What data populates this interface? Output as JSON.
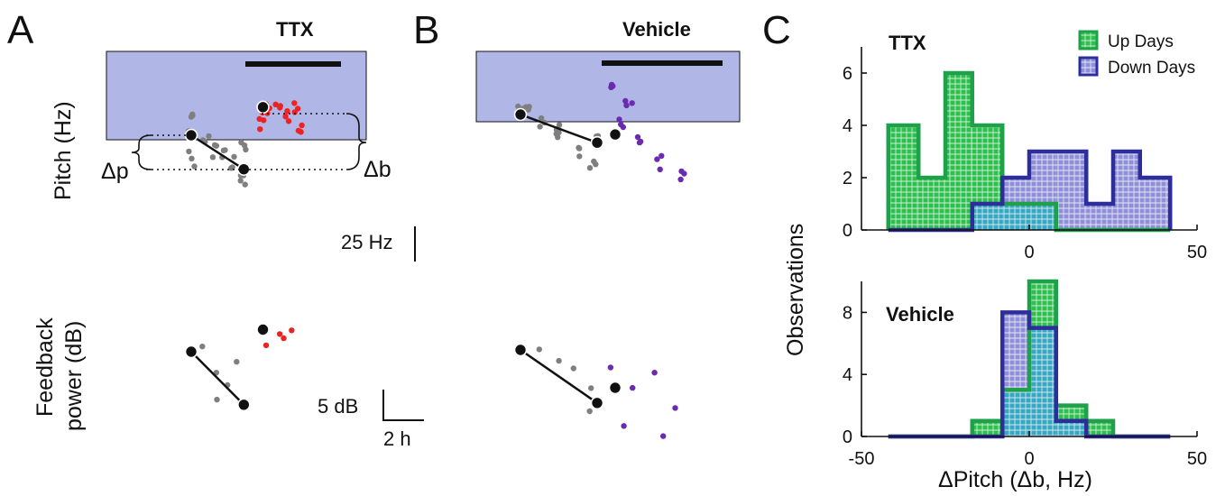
{
  "colors": {
    "pre": "#7f7f7f",
    "ttx": "#ee2222",
    "vehicle": "#6a2bb0",
    "shade": "#b0b6e6",
    "up_fill": "#2fbf4f",
    "up_edge": "#1fa04a",
    "down_fill": "#8f90d8",
    "down_edge": "#2e2e9a",
    "overlap": "#38a7c2"
  },
  "panels": {
    "A": {
      "letter": "A",
      "condition": "TTX",
      "pitch_ylabel": "Pitch (Hz)",
      "power_ylabel_line1": "Feedback",
      "power_ylabel_line2": "power (dB)",
      "delta_p": "Δp",
      "delta_b": "Δb",
      "pitch_scalebar": "25 Hz",
      "power_scalebar": "5 dB",
      "time_scalebar": "2 h"
    },
    "B": {
      "letter": "B",
      "condition": "Vehicle"
    },
    "C": {
      "letter": "C",
      "ylabel": "Observations",
      "xlabel": "ΔPitch (Δb, Hz)"
    }
  },
  "chart_data": [
    {
      "type": "bar",
      "subtype": "step-histogram",
      "panel": "C-top",
      "title": "TTX",
      "x_edges": [
        -42,
        -33,
        -25,
        -17,
        -8,
        0,
        8,
        17,
        25,
        33,
        42
      ],
      "xlim": [
        -50,
        50
      ],
      "ylim": [
        0,
        7
      ],
      "yticks": [
        0,
        2,
        4,
        6
      ],
      "xticks": [
        0,
        50
      ],
      "legend": {
        "position": "top-right",
        "entries": [
          "Up Days",
          "Down Days"
        ]
      },
      "series": [
        {
          "name": "Up Days",
          "values": [
            4,
            2,
            6,
            4,
            1,
            1,
            0,
            0,
            0,
            0
          ]
        },
        {
          "name": "Down Days",
          "values": [
            0,
            0,
            0,
            1,
            2,
            3,
            3,
            1,
            3,
            2
          ]
        }
      ]
    },
    {
      "type": "bar",
      "subtype": "step-histogram",
      "panel": "C-bottom",
      "title": "Vehicle",
      "x_edges": [
        -42,
        -33,
        -25,
        -17,
        -8,
        0,
        8,
        17,
        25,
        33,
        42
      ],
      "xlim": [
        -50,
        50
      ],
      "ylim": [
        0,
        10
      ],
      "yticks": [
        0,
        4,
        8
      ],
      "xticks": [
        -50,
        0,
        50
      ],
      "series": [
        {
          "name": "Up Days",
          "values": [
            0,
            0,
            0,
            1,
            3,
            10,
            2,
            1,
            0,
            0
          ]
        },
        {
          "name": "Down Days",
          "values": [
            0,
            0,
            0,
            0,
            8,
            7,
            1,
            0,
            0,
            0
          ]
        }
      ]
    },
    {
      "type": "scatter",
      "panel": "A-pitch",
      "title": "TTX",
      "units": "Hz",
      "series": [
        {
          "group": "pre",
          "points": [
            [
              0.0,
              0.0
            ],
            [
              1.1,
              -29.0
            ],
            [
              0.0,
              12.0
            ],
            [
              0.0,
              -20.0
            ],
            [
              0.3,
              -5.0
            ],
            [
              0.5,
              -12.0
            ],
            [
              0.7,
              -15.0
            ],
            [
              0.9,
              -22.0
            ],
            [
              1.1,
              -10.0
            ],
            [
              1.1,
              -40.0
            ]
          ]
        },
        {
          "group": "post",
          "points": [
            [
              1.5,
              24.0
            ],
            [
              1.6,
              18.0
            ],
            [
              1.8,
              30.0
            ],
            [
              2.0,
              14.0
            ],
            [
              2.2,
              26.0
            ],
            [
              1.5,
              12.0
            ],
            [
              2.3,
              8.0
            ]
          ]
        }
      ],
      "means": [
        [
          0.0,
          0.0
        ],
        [
          1.1,
          -29.0
        ],
        [
          1.5,
          24.0
        ]
      ]
    },
    {
      "type": "scatter",
      "panel": "A-power",
      "title": "TTX",
      "units": "dB",
      "series": [
        {
          "group": "pre",
          "points": [
            [
              0.0,
              0.0
            ],
            [
              1.1,
              -8.4
            ],
            [
              0.2,
              1.0
            ],
            [
              0.5,
              -3.0
            ],
            [
              0.8,
              -5.0
            ],
            [
              1.0,
              -2.0
            ],
            [
              0.6,
              -8.0
            ]
          ]
        },
        {
          "group": "post",
          "points": [
            [
              1.5,
              3.5
            ],
            [
              1.8,
              2.5
            ],
            [
              2.1,
              3.0
            ],
            [
              1.6,
              1.0
            ],
            [
              2.0,
              2.0
            ]
          ]
        }
      ],
      "means": [
        [
          0.0,
          0.0
        ],
        [
          1.1,
          -8.4
        ],
        [
          1.5,
          3.5
        ]
      ]
    },
    {
      "type": "scatter",
      "panel": "B-pitch",
      "title": "Vehicle",
      "units": "Hz",
      "series": [
        {
          "group": "pre",
          "points": [
            [
              0.0,
              0.0
            ],
            [
              1.7,
              -24.0
            ],
            [
              0.2,
              10.0
            ],
            [
              0.5,
              -5.0
            ],
            [
              0.9,
              -18.0
            ],
            [
              1.3,
              -30.0
            ],
            [
              1.6,
              -40.0
            ],
            [
              0.8,
              -10.0
            ]
          ]
        },
        {
          "group": "post",
          "points": [
            [
              2.0,
              30.0
            ],
            [
              2.2,
              -10.0
            ],
            [
              2.6,
              -20.0
            ],
            [
              3.1,
              -40.0
            ],
            [
              3.6,
              -55.0
            ],
            [
              2.4,
              10.0
            ]
          ]
        }
      ],
      "means": [
        [
          0.0,
          0.0
        ],
        [
          1.7,
          -24.0
        ],
        [
          2.1,
          -17.0
        ]
      ]
    },
    {
      "type": "scatter",
      "panel": "B-power",
      "title": "Vehicle",
      "units": "dB",
      "series": [
        {
          "group": "pre",
          "points": [
            [
              0.0,
              0.0
            ],
            [
              1.7,
              -8.4
            ],
            [
              0.4,
              0.0
            ],
            [
              0.8,
              -2.0
            ],
            [
              1.2,
              -3.0
            ],
            [
              1.5,
              -6.0
            ],
            [
              1.6,
              -10.0
            ]
          ]
        },
        {
          "group": "post",
          "points": [
            [
              2.0,
              -3.0
            ],
            [
              2.5,
              -6.0
            ],
            [
              3.0,
              -4.0
            ],
            [
              3.5,
              -9.0
            ],
            [
              2.3,
              -12.0
            ],
            [
              3.1,
              -14.0
            ]
          ]
        }
      ],
      "means": [
        [
          0.0,
          0.0
        ],
        [
          1.7,
          -8.4
        ],
        [
          2.1,
          -6.0
        ]
      ]
    }
  ]
}
